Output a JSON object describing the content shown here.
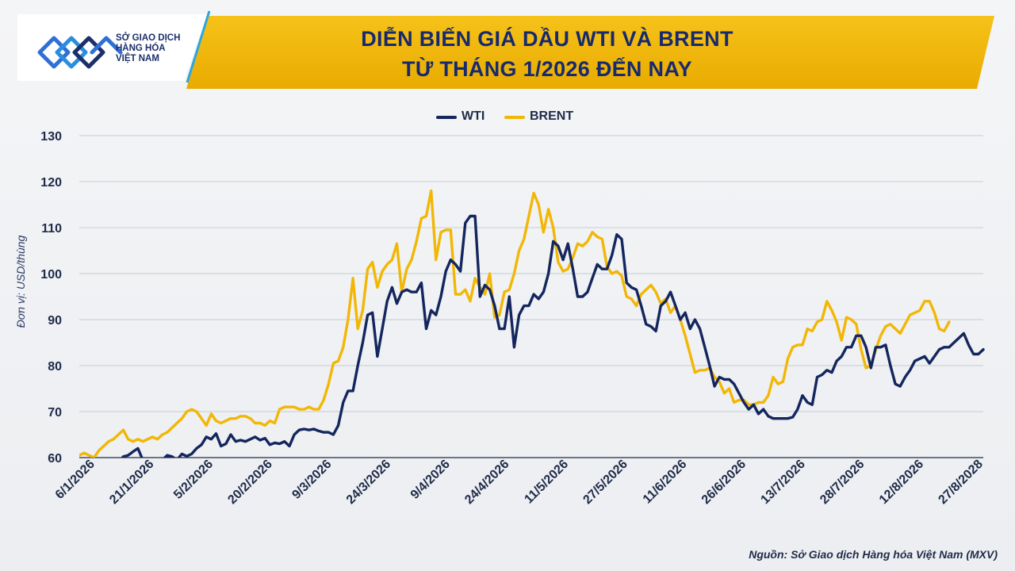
{
  "brand": {
    "lines": [
      "SỞ GIAO DỊCH",
      "HÀNG HÓA",
      "VIỆT NAM"
    ],
    "colors": {
      "navy": "#1b2f6b",
      "blue": "#2f6fd6",
      "banner": "#f2b705"
    }
  },
  "title_lines": [
    "DIỄN BIẾN GIÁ DẦU WTI VÀ BRENT",
    "TỪ THÁNG 1/2026 ĐẾN NAY"
  ],
  "source": "Nguồn: Sở Giao dịch Hàng hóa Việt Nam (MXV)",
  "chart_data": {
    "type": "line",
    "title": "DIỄN BIẾN GIÁ DẦU WTI VÀ BRENT TỪ THÁNG 1/2026 ĐẾN NAY",
    "ylabel": "Đơn vị: USD/thùng",
    "xlabel": "",
    "ylim": [
      60,
      130
    ],
    "yticks": [
      60,
      70,
      80,
      90,
      100,
      110,
      120,
      130
    ],
    "grid": true,
    "legend_position": "top-center",
    "x_ticks": [
      "6/1/2026",
      "21/1/2026",
      "5/2/2026",
      "20/2/2026",
      "9/3/2026",
      "24/3/2026",
      "9/4/2026",
      "24/4/2026",
      "11/5/2026",
      "27/5/2026",
      "11/6/2026",
      "26/6/2026",
      "13/7/2026",
      "28/7/2026",
      "12/8/2026",
      "27/8/2028"
    ],
    "series": [
      {
        "name": "WTI",
        "color": "#14265e",
        "values": [
          57.5,
          57.0,
          56.8,
          57.5,
          58.2,
          57.5,
          57.7,
          58.0,
          59.0,
          60.2,
          60.5,
          61.3,
          62.0,
          59.5,
          58.0,
          58.8,
          59.0,
          59.5,
          60.5,
          60.2,
          59.5,
          60.8,
          60.3,
          60.8,
          62.0,
          62.8,
          64.5,
          64.0,
          65.2,
          62.5,
          63.0,
          65.0,
          63.5,
          63.8,
          63.5,
          64.0,
          64.5,
          63.8,
          64.2,
          62.8,
          63.2,
          63.0,
          63.5,
          62.5,
          65.0,
          66.0,
          66.2,
          66.0,
          66.2,
          65.8,
          65.5,
          65.5,
          65.0,
          67.0,
          72.0,
          74.5,
          74.5,
          80.0,
          85.0,
          91.0,
          91.5,
          82.0,
          88.0,
          94.0,
          97.0,
          93.5,
          96.0,
          96.5,
          96.0,
          96.0,
          98.0,
          88.0,
          92.0,
          91.0,
          95.0,
          100.5,
          103.0,
          102.0,
          100.5,
          111.0,
          112.5,
          112.5,
          95.0,
          97.5,
          96.5,
          93.0,
          88.0,
          88.0,
          95.0,
          84.0,
          91.0,
          93.0,
          93.0,
          95.5,
          94.5,
          96.0,
          100.0,
          107.0,
          106.0,
          103.0,
          106.5,
          101.0,
          95.0,
          95.0,
          96.0,
          99.0,
          102.0,
          101.0,
          101.0,
          104.0,
          108.5,
          107.5,
          98.0,
          97.0,
          96.5,
          93.0,
          89.0,
          88.5,
          87.5,
          93.0,
          94.0,
          96.0,
          93.0,
          90.0,
          91.5,
          88.0,
          90.0,
          88.0,
          84.0,
          80.0,
          75.5,
          77.5,
          77.0,
          77.0,
          76.0,
          74.0,
          72.0,
          70.5,
          71.5,
          69.5,
          70.5,
          69.0,
          68.5,
          68.5,
          68.5,
          68.5,
          68.8,
          70.5,
          73.5,
          72.0,
          71.5,
          77.5,
          78.0,
          79.0,
          78.5,
          81.0,
          82.0,
          84.0,
          84.0,
          86.5,
          86.5,
          84.0,
          79.5,
          84.0,
          84.0,
          84.5,
          80.0,
          76.0,
          75.5,
          77.5,
          79.0,
          81.0,
          81.5,
          82.0,
          80.5,
          82.0,
          83.5,
          84.0,
          84.0,
          85.0,
          86.0,
          87.0,
          84.5,
          82.5,
          82.5,
          83.5
        ]
      },
      {
        "name": "BRENT",
        "color": "#f2b705",
        "values": [
          60.5,
          61.0,
          60.5,
          60.0,
          61.5,
          62.5,
          63.5,
          64.0,
          65.0,
          66.0,
          64.0,
          63.5,
          64.0,
          63.5,
          64.0,
          64.5,
          64.0,
          65.0,
          65.5,
          66.5,
          67.5,
          68.5,
          70.0,
          70.5,
          70.0,
          68.5,
          67.0,
          69.5,
          68.0,
          67.5,
          68.0,
          68.5,
          68.5,
          69.0,
          69.0,
          68.5,
          67.5,
          67.5,
          67.0,
          68.0,
          67.5,
          70.5,
          71.0,
          71.0,
          71.0,
          70.5,
          70.5,
          71.0,
          70.5,
          70.5,
          72.5,
          76.0,
          80.5,
          81.0,
          84.0,
          90.0,
          99.0,
          88.0,
          92.0,
          101.0,
          102.5,
          97.0,
          100.5,
          102.0,
          103.0,
          106.5,
          96.0,
          101.0,
          103.0,
          107.0,
          112.0,
          112.5,
          118.0,
          103.0,
          109.0,
          109.5,
          109.5,
          95.5,
          95.5,
          96.5,
          94.0,
          99.0,
          97.0,
          95.5,
          100.0,
          90.5,
          91.0,
          96.0,
          96.5,
          100.0,
          105.0,
          107.5,
          112.5,
          117.5,
          115.0,
          109.0,
          114.0,
          110.0,
          102.5,
          100.5,
          101.0,
          103.5,
          106.5,
          106.0,
          107.0,
          109.0,
          108.0,
          107.5,
          101.5,
          100.0,
          100.5,
          99.5,
          95.0,
          94.5,
          93.0,
          95.5,
          96.5,
          97.5,
          96.0,
          93.5,
          94.5,
          91.5,
          93.0,
          90.0,
          86.5,
          82.5,
          78.5,
          79.0,
          79.0,
          79.5,
          77.5,
          76.5,
          74.0,
          75.0,
          72.0,
          72.5,
          72.5,
          71.5,
          71.5,
          72.0,
          72.0,
          73.5,
          77.5,
          76.0,
          76.5,
          81.5,
          84.0,
          84.5,
          84.5,
          88.0,
          87.5,
          89.5,
          90.0,
          94.0,
          92.0,
          89.5,
          85.5,
          90.5,
          90.0,
          89.0,
          83.5,
          79.5,
          80.0,
          83.5,
          86.5,
          88.5,
          89.0,
          88.0,
          87.0,
          89.0,
          91.0,
          91.5,
          92.0,
          94.0,
          94.0,
          91.5,
          88.0,
          87.5,
          89.5
        ]
      }
    ]
  }
}
